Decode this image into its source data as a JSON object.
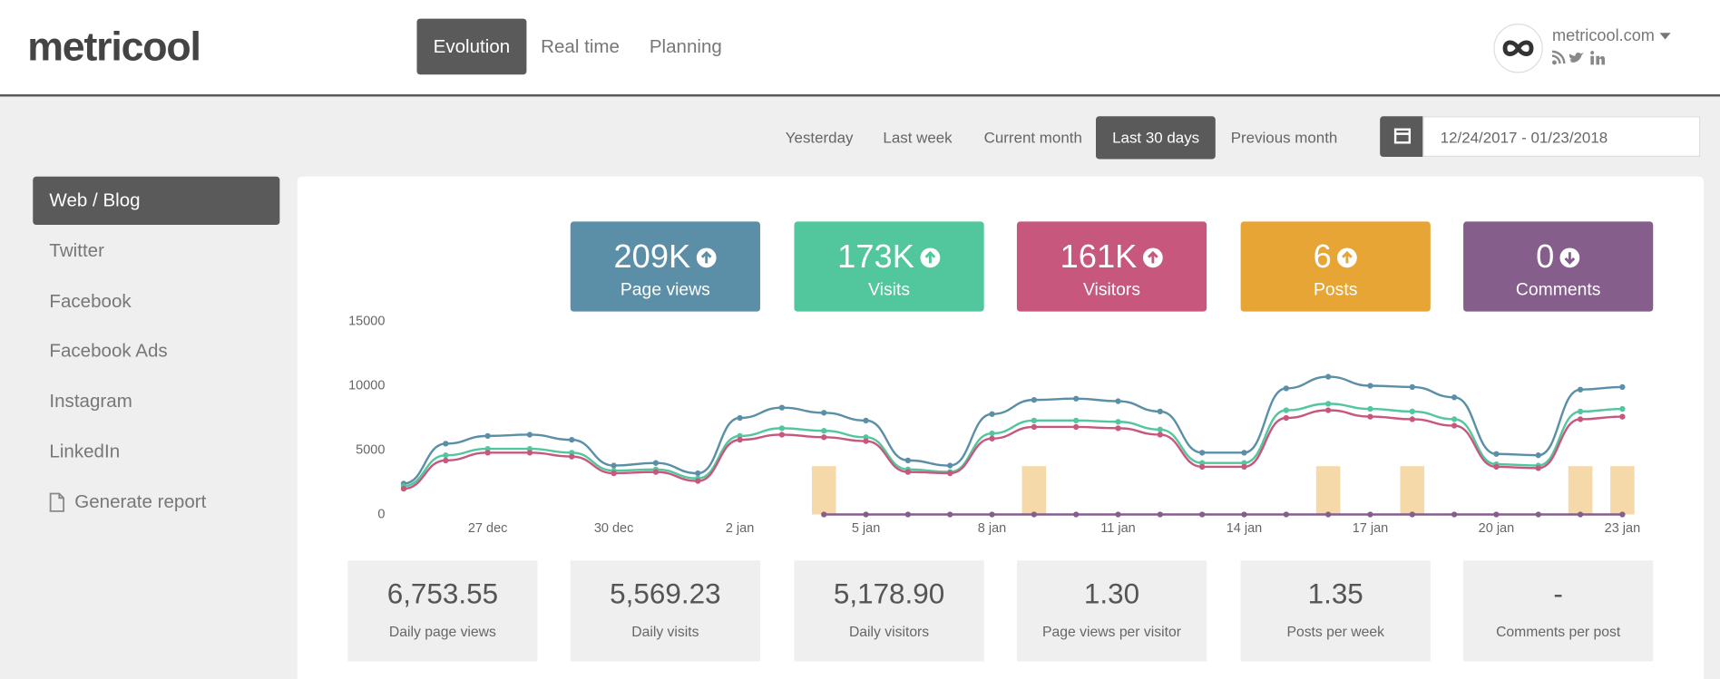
{
  "header": {
    "logo": "metricool",
    "nav": [
      "Evolution",
      "Real time",
      "Planning"
    ],
    "active": 0,
    "account": "metricool.com"
  },
  "ranges": {
    "options": [
      "Yesterday",
      "Last week",
      "Current month",
      "Last 30 days",
      "Previous month"
    ],
    "active": 3,
    "date": "12/24/2017 - 01/23/2018"
  },
  "sidebar": {
    "items": [
      "Web / Blog",
      "Twitter",
      "Facebook",
      "Facebook Ads",
      "Instagram",
      "LinkedIn"
    ],
    "active": 0,
    "report": "Generate report"
  },
  "cards": [
    {
      "value": "209K",
      "label": "Page views",
      "color": "#5b8fa8",
      "trend": "up"
    },
    {
      "value": "173K",
      "label": "Visits",
      "color": "#52c69d",
      "trend": "up"
    },
    {
      "value": "161K",
      "label": "Visitors",
      "color": "#c7577d",
      "trend": "up"
    },
    {
      "value": "6",
      "label": "Posts",
      "color": "#e6a534",
      "trend": "up"
    },
    {
      "value": "0",
      "label": "Comments",
      "color": "#855e8b",
      "trend": "down"
    }
  ],
  "stats": [
    {
      "value": "6,753.55",
      "label": "Daily page views"
    },
    {
      "value": "5,569.23",
      "label": "Daily visits"
    },
    {
      "value": "5,178.90",
      "label": "Daily visitors"
    },
    {
      "value": "1.30",
      "label": "Page views per visitor"
    },
    {
      "value": "1.35",
      "label": "Posts per week"
    },
    {
      "value": "-",
      "label": "Comments per post"
    }
  ],
  "chart_data": {
    "type": "line",
    "categories": [
      null,
      null,
      "27 dec",
      null,
      null,
      "30 dec",
      null,
      null,
      "2 jan",
      null,
      null,
      "5 jan",
      null,
      null,
      "8 jan",
      null,
      null,
      "11 jan",
      null,
      null,
      "14 jan",
      null,
      null,
      "17 jan",
      null,
      null,
      "20 jan",
      null,
      null,
      "23 jan"
    ],
    "ylim": [
      0,
      15000
    ],
    "yticks": [
      0,
      5000,
      10000,
      15000
    ],
    "y2lim": [
      0,
      4
    ],
    "grid": false,
    "series": [
      {
        "type": "bar",
        "axis": "y2",
        "color": "#f5d9a8",
        "values": [
          0,
          0,
          0,
          0,
          0,
          0,
          0,
          0,
          0,
          0,
          1,
          0,
          0,
          0,
          0,
          1,
          0,
          0,
          0,
          0,
          0,
          0,
          1,
          0,
          1,
          0,
          0,
          0,
          1,
          1
        ]
      },
      {
        "type": "line",
        "color": "#5b8fa8",
        "values": [
          2400,
          5500,
          6100,
          6200,
          5800,
          3800,
          4000,
          3200,
          7500,
          8300,
          7900,
          7300,
          4200,
          3800,
          7800,
          8900,
          9000,
          8800,
          8000,
          4800,
          4800,
          9800,
          10700,
          10000,
          9900,
          9100,
          4700,
          4600,
          9700,
          9900
        ]
      },
      {
        "type": "line",
        "color": "#52c69d",
        "values": [
          2200,
          4600,
          5100,
          5100,
          4800,
          3400,
          3500,
          2800,
          6100,
          6700,
          6500,
          6000,
          3500,
          3300,
          6300,
          7300,
          7300,
          7200,
          6600,
          4000,
          4000,
          8100,
          8600,
          8200,
          8000,
          7400,
          3900,
          3800,
          8000,
          8200
        ]
      },
      {
        "type": "line",
        "color": "#c7577d",
        "values": [
          2000,
          4200,
          4800,
          4800,
          4500,
          3200,
          3300,
          2600,
          5800,
          6200,
          6000,
          5700,
          3300,
          3200,
          5900,
          6800,
          6800,
          6700,
          6200,
          3700,
          3700,
          7500,
          8100,
          7600,
          7400,
          6900,
          3700,
          3600,
          7400,
          7600
        ]
      },
      {
        "type": "line",
        "color": "#855e8b",
        "values": [
          null,
          null,
          null,
          null,
          null,
          null,
          null,
          null,
          null,
          null,
          0,
          0,
          0,
          0,
          0,
          0,
          0,
          0,
          0,
          0,
          0,
          0,
          0,
          0,
          0,
          0,
          0,
          0,
          0,
          0
        ]
      }
    ]
  }
}
